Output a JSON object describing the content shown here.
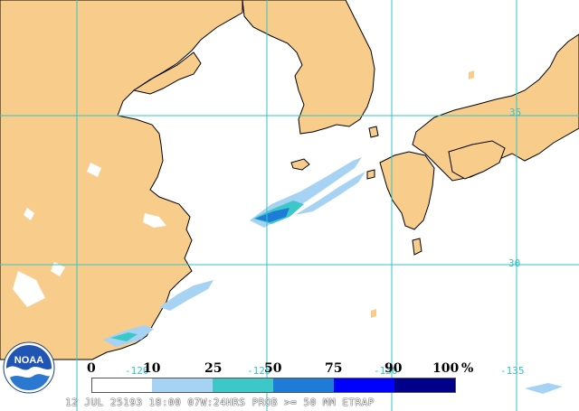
{
  "map": {
    "colors": {
      "land": "#f8cd8c",
      "water": "#ffffff",
      "graticule": "#35c3c8",
      "coast": "#000000",
      "prob_10": "#a6d2f4",
      "prob_25": "#3cc8c8",
      "prob_50": "#1e7bd7",
      "prob_75": "#0000ff",
      "prob_90": "#00008b"
    },
    "lat_labels": [
      "35",
      "30"
    ],
    "lon_labels": [
      "-120",
      "-125",
      "-130",
      "-135"
    ]
  },
  "legend": {
    "ticks": [
      "0",
      "10",
      "25",
      "50",
      "75",
      "90",
      "100"
    ],
    "unit": "%",
    "bins": [
      "#ffffff",
      "#a6d2f4",
      "#3cc8c8",
      "#1e7bd7",
      "#0000ff",
      "#00008b"
    ]
  },
  "footer": {
    "caption": "12 JUL 25193 18:00 07W:24HRS PROB >= 50 MM ETRAP"
  },
  "logo": {
    "text": "NOAA",
    "icon": "noaa-logo-icon"
  }
}
